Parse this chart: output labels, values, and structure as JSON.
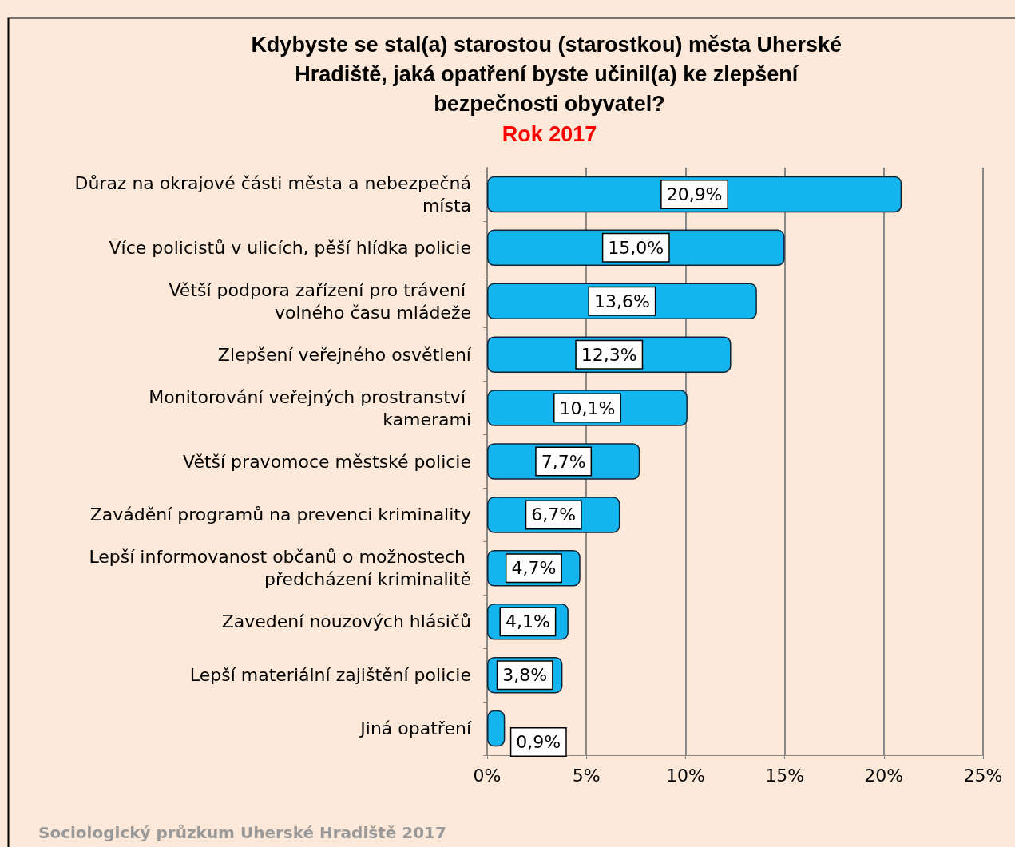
{
  "chart_data": {
    "type": "bar",
    "orientation": "horizontal",
    "title": "Kdybyste se stal(a) starostou (starostkou) města Uherské Hradiště, jaká opatření byste učinil(a) ke zlepšení bezpečnosti obyvatel?",
    "subtitle": "Rok 2017",
    "categories": [
      "Důraz na okrajové části města a nebezpečná místa",
      "Více policistů v ulicích, pěší hlídka policie",
      "Větší podpora zařízení pro trávení volného času mládeže",
      "Zlepšení veřejného osvětlení",
      "Monitorování veřejných prostranství kamerami",
      "Větší pravomoce městské policie",
      "Zavádění programů na prevenci kriminality",
      "Lepší informovanost občanů o možnostech předcházení kriminalitě",
      "Zavedení nouzových hlásičů",
      "Lepší materiální zajištění policie",
      "Jiná opatření"
    ],
    "values": [
      20.9,
      15.0,
      13.6,
      12.3,
      10.1,
      7.7,
      6.7,
      4.7,
      4.1,
      3.8,
      0.9
    ],
    "value_labels": [
      "20,9%",
      "15,0%",
      "13,6%",
      "12,3%",
      "10,1%",
      "7,7%",
      "6,7%",
      "4,7%",
      "4,1%",
      "3,8%",
      "0,9%"
    ],
    "color": "#14b4ee",
    "xlim": [
      0,
      25
    ],
    "xticks": [
      {
        "value": 0,
        "label": "0%"
      },
      {
        "value": 5,
        "label": "5%"
      },
      {
        "value": 10,
        "label": "10%"
      },
      {
        "value": 15,
        "label": "15%"
      },
      {
        "value": 20,
        "label": "20%"
      },
      {
        "value": 25,
        "label": "25%"
      }
    ],
    "grid": "x",
    "annotations": [
      "Sociologický průzkum Uherské Hradiště 2017"
    ]
  }
}
